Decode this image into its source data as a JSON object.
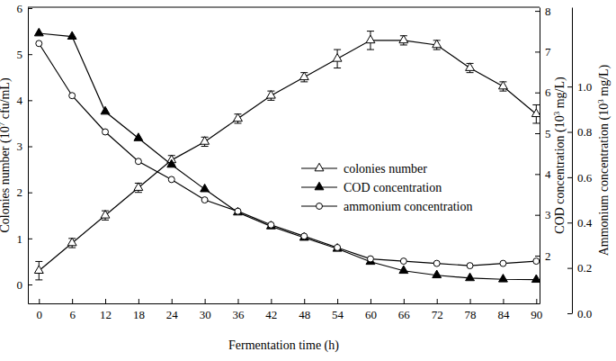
{
  "chart_data": {
    "type": "line",
    "xlabel": "Fermentation time (h)",
    "ylabel": [
      "Colonies number (10",
      "7",
      " cfu/mL)"
    ],
    "y2label": [
      "COD concentration (10",
      "3",
      " mg/L)"
    ],
    "y3label": [
      "Ammonium concentration (10",
      "3",
      " mg/L)"
    ],
    "x": [
      0,
      6,
      12,
      18,
      24,
      30,
      36,
      42,
      48,
      54,
      60,
      66,
      72,
      78,
      84,
      90
    ],
    "xlim": [
      -2,
      90.6
    ],
    "xticks": [
      0,
      6,
      12,
      18,
      24,
      30,
      36,
      42,
      48,
      54,
      60,
      66,
      72,
      78,
      84,
      90
    ],
    "ylim": [
      -0.41,
      6.02
    ],
    "yticks": [
      0,
      1,
      2,
      3,
      4,
      5,
      6
    ],
    "y2lim": [
      0.83,
      8.09
    ],
    "y2ticks": [
      2,
      3,
      4,
      5,
      6,
      7,
      8
    ],
    "y3lim": [
      0,
      1.35
    ],
    "y3ticks": [
      {
        "value": 0,
        "label": "0.0"
      },
      0.2,
      0.4,
      0.6,
      0.8,
      {
        "value": 1,
        "label": "1.0"
      }
    ],
    "legend": "right",
    "series": [
      {
        "name": "colonies number",
        "color": "#000000",
        "marker": "triangle-open",
        "axis": "y",
        "values": [
          0.3,
          0.9,
          1.5,
          2.1,
          2.7,
          3.1,
          3.6,
          4.1,
          4.5,
          4.9,
          5.3,
          5.3,
          5.2,
          4.7,
          4.3,
          3.7
        ],
        "errors": [
          0.2,
          0.1,
          0.1,
          0.1,
          0.1,
          0.1,
          0.1,
          0.1,
          0.1,
          0.2,
          0.2,
          0.1,
          0.1,
          0.1,
          0.1,
          0.2
        ]
      },
      {
        "name": "COD concentration",
        "color": "#000000",
        "marker": "triangle",
        "axis": "y2",
        "values": [
          7.45,
          7.37,
          5.53,
          4.88,
          4.23,
          3.63,
          3.06,
          2.72,
          2.44,
          2.17,
          1.85,
          1.63,
          1.52,
          1.45,
          1.42,
          1.41
        ]
      },
      {
        "name": "ammonium concentration",
        "color": "#000000",
        "marker": "circle-open",
        "axis": "y3",
        "values": [
          1.19,
          0.96,
          0.8,
          0.67,
          0.59,
          0.5,
          0.45,
          0.39,
          0.34,
          0.29,
          0.24,
          0.23,
          0.22,
          0.21,
          0.22,
          0.23
        ]
      }
    ]
  }
}
